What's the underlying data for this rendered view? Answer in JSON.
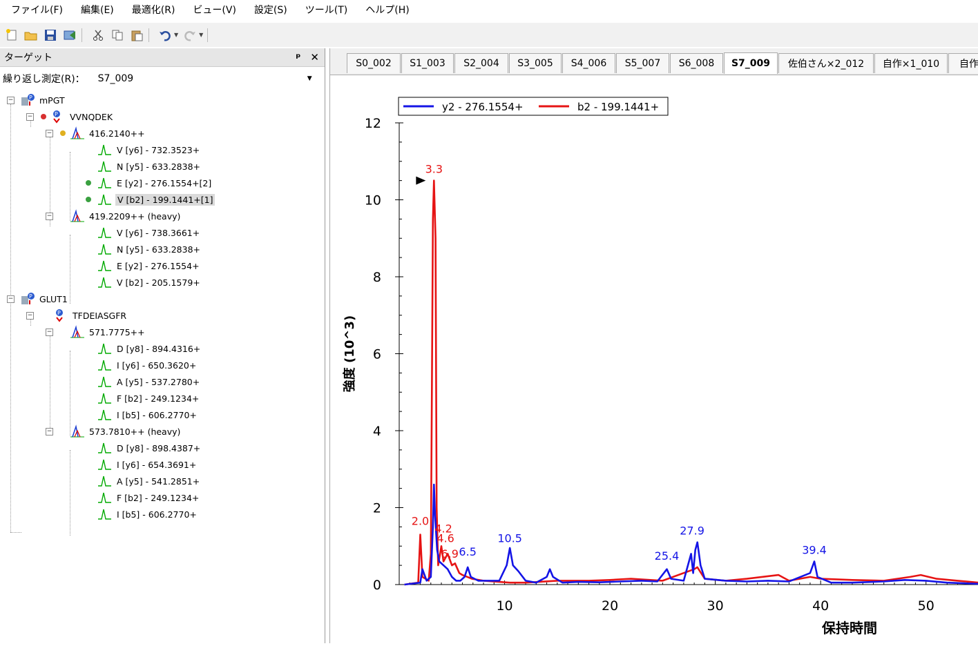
{
  "menu": [
    "ファイル(F)",
    "編集(E)",
    "最適化(R)",
    "ビュー(V)",
    "設定(S)",
    "ツール(T)",
    "ヘルプ(H)"
  ],
  "panel": {
    "title": "ターゲット",
    "pin_icon": "pin-icon",
    "close_icon": "close-icon"
  },
  "replicate": {
    "label": "繰り返し測定(R)：",
    "value": "S7_009"
  },
  "tree": {
    "protein1": {
      "name": "mPGT"
    },
    "peptide1": {
      "name": "VVNQDEK"
    },
    "precursor1": {
      "name": "416.2140++"
    },
    "p1_t1": "V [y6] - 732.3523+",
    "p1_t2": "N [y5] - 633.2838+",
    "p1_t3": "E [y2] - 276.1554+[2]",
    "p1_t4": "V [b2] - 199.1441+[1]",
    "precursor2": {
      "name": "419.2209++ (heavy)"
    },
    "p2_t1": "V [y6] - 738.3661+",
    "p2_t2": "N [y5] - 633.2838+",
    "p2_t3": "E [y2] - 276.1554+",
    "p2_t4": "V [b2] - 205.1579+",
    "protein2": {
      "name": "GLUT1"
    },
    "peptide2": {
      "name": "TFDEIASGFR"
    },
    "precursor3": {
      "name": "571.7775++"
    },
    "p3_t1": "D [y8] - 894.4316+",
    "p3_t2": "I [y6] - 650.3620+",
    "p3_t3": "A [y5] - 537.2780+",
    "p3_t4": "F [b2] - 249.1234+",
    "p3_t5": "I [b5] - 606.2770+",
    "precursor4": {
      "name": "573.7810++ (heavy)"
    },
    "p4_t1": "D [y8] - 898.4387+",
    "p4_t2": "I [y6] - 654.3691+",
    "p4_t3": "A [y5] - 541.2851+",
    "p4_t4": "F [b2] - 249.1234+",
    "p4_t5": "I [b5] - 606.2770+"
  },
  "tabs": [
    "S0_002",
    "S1_003",
    "S2_004",
    "S3_005",
    "S4_006",
    "S5_007",
    "S6_008",
    "S7_009",
    "佐伯さん×2_012",
    "自作×1_010",
    "自作"
  ],
  "active_tab": "S7_009",
  "chart_data": {
    "type": "line",
    "xlabel": "保持時間",
    "ylabel": "強度 (10^3)",
    "xlim": [
      0,
      55
    ],
    "ylim": [
      0,
      12
    ],
    "xticks": [
      10,
      20,
      30,
      40,
      50
    ],
    "yticks": [
      0,
      2,
      4,
      6,
      8,
      10,
      12
    ],
    "legend_position": "top-left",
    "series": [
      {
        "name": "y2 - 276.1554+",
        "color": "#1414e6",
        "points": [
          [
            0.5,
            0
          ],
          [
            2,
            0.05
          ],
          [
            2.2,
            0.4
          ],
          [
            2.6,
            0.1
          ],
          [
            3.0,
            0.2
          ],
          [
            3.2,
            1.5
          ],
          [
            3.3,
            2.6
          ],
          [
            3.4,
            1.8
          ],
          [
            3.6,
            0.9
          ],
          [
            3.8,
            0.6
          ],
          [
            4.2,
            0.5
          ],
          [
            4.6,
            0.4
          ],
          [
            5.0,
            0.2
          ],
          [
            5.4,
            0.1
          ],
          [
            5.8,
            0.1
          ],
          [
            6.2,
            0.2
          ],
          [
            6.5,
            0.45
          ],
          [
            6.8,
            0.2
          ],
          [
            7.5,
            0.1
          ],
          [
            8.5,
            0.1
          ],
          [
            9.5,
            0.1
          ],
          [
            10.2,
            0.5
          ],
          [
            10.5,
            0.95
          ],
          [
            10.8,
            0.5
          ],
          [
            11.3,
            0.35
          ],
          [
            12,
            0.1
          ],
          [
            13,
            0.05
          ],
          [
            14,
            0.2
          ],
          [
            14.3,
            0.4
          ],
          [
            14.6,
            0.2
          ],
          [
            15.5,
            0.05
          ],
          [
            17,
            0.07
          ],
          [
            19,
            0.06
          ],
          [
            21,
            0.08
          ],
          [
            23,
            0.1
          ],
          [
            24.5,
            0.08
          ],
          [
            25.4,
            0.4
          ],
          [
            25.8,
            0.15
          ],
          [
            27,
            0.1
          ],
          [
            27.7,
            0.8
          ],
          [
            27.9,
            0.3
          ],
          [
            28.1,
            0.9
          ],
          [
            28.3,
            1.1
          ],
          [
            28.6,
            0.5
          ],
          [
            29,
            0.15
          ],
          [
            31,
            0.1
          ],
          [
            33,
            0.08
          ],
          [
            35,
            0.1
          ],
          [
            37,
            0.08
          ],
          [
            39,
            0.3
          ],
          [
            39.4,
            0.6
          ],
          [
            39.7,
            0.2
          ],
          [
            41,
            0.05
          ],
          [
            43,
            0.05
          ],
          [
            46,
            0.08
          ],
          [
            48,
            0.12
          ],
          [
            50,
            0.1
          ],
          [
            52,
            0.05
          ],
          [
            55,
            0.02
          ]
        ]
      },
      {
        "name": "b2 - 199.1441+",
        "color": "#e61414",
        "points": [
          [
            0.5,
            0
          ],
          [
            1.8,
            0.05
          ],
          [
            2.0,
            1.3
          ],
          [
            2.2,
            0.2
          ],
          [
            2.8,
            0.1
          ],
          [
            3.0,
            0.8
          ],
          [
            3.1,
            5
          ],
          [
            3.2,
            9.5
          ],
          [
            3.3,
            10.5
          ],
          [
            3.45,
            9
          ],
          [
            3.55,
            2
          ],
          [
            3.7,
            0.5
          ],
          [
            4.0,
            1.0
          ],
          [
            4.2,
            0.6
          ],
          [
            4.6,
            0.8
          ],
          [
            5.0,
            0.5
          ],
          [
            5.3,
            0.55
          ],
          [
            5.7,
            0.3
          ],
          [
            6.0,
            0.25
          ],
          [
            6.9,
            0.15
          ],
          [
            8,
            0.1
          ],
          [
            10.5,
            0.05
          ],
          [
            12,
            0.05
          ],
          [
            15,
            0.1
          ],
          [
            18,
            0.1
          ],
          [
            20,
            0.12
          ],
          [
            22,
            0.15
          ],
          [
            25,
            0.1
          ],
          [
            28,
            0.4
          ],
          [
            28.3,
            0.45
          ],
          [
            29,
            0.15
          ],
          [
            31,
            0.1
          ],
          [
            33,
            0.15
          ],
          [
            36,
            0.25
          ],
          [
            37,
            0.1
          ],
          [
            39,
            0.2
          ],
          [
            40,
            0.15
          ],
          [
            43,
            0.12
          ],
          [
            46,
            0.1
          ],
          [
            48.5,
            0.2
          ],
          [
            49.5,
            0.25
          ],
          [
            51,
            0.15
          ],
          [
            53,
            0.1
          ],
          [
            55,
            0.05
          ]
        ]
      }
    ],
    "annotations": [
      {
        "x": 2.0,
        "y": 1.55,
        "text": "2.0",
        "color": "#e61414"
      },
      {
        "x": 3.3,
        "y": 10.7,
        "text": "3.3",
        "color": "#e61414"
      },
      {
        "x": 4.2,
        "y": 1.35,
        "text": "4.2",
        "color": "#e61414"
      },
      {
        "x": 4.4,
        "y": 1.1,
        "text": "4.6",
        "color": "#e61414"
      },
      {
        "x": 4.8,
        "y": 0.7,
        "text": "6.9",
        "color": "#e61414"
      },
      {
        "x": 6.5,
        "y": 0.75,
        "text": "6.5",
        "color": "#1414e6"
      },
      {
        "x": 10.5,
        "y": 1.1,
        "text": "10.5",
        "color": "#1414e6"
      },
      {
        "x": 25.4,
        "y": 0.65,
        "text": "25.4",
        "color": "#1414e6"
      },
      {
        "x": 27.8,
        "y": 1.3,
        "text": "27.9",
        "color": "#1414e6"
      },
      {
        "x": 39.4,
        "y": 0.8,
        "text": "39.4",
        "color": "#1414e6"
      }
    ]
  }
}
